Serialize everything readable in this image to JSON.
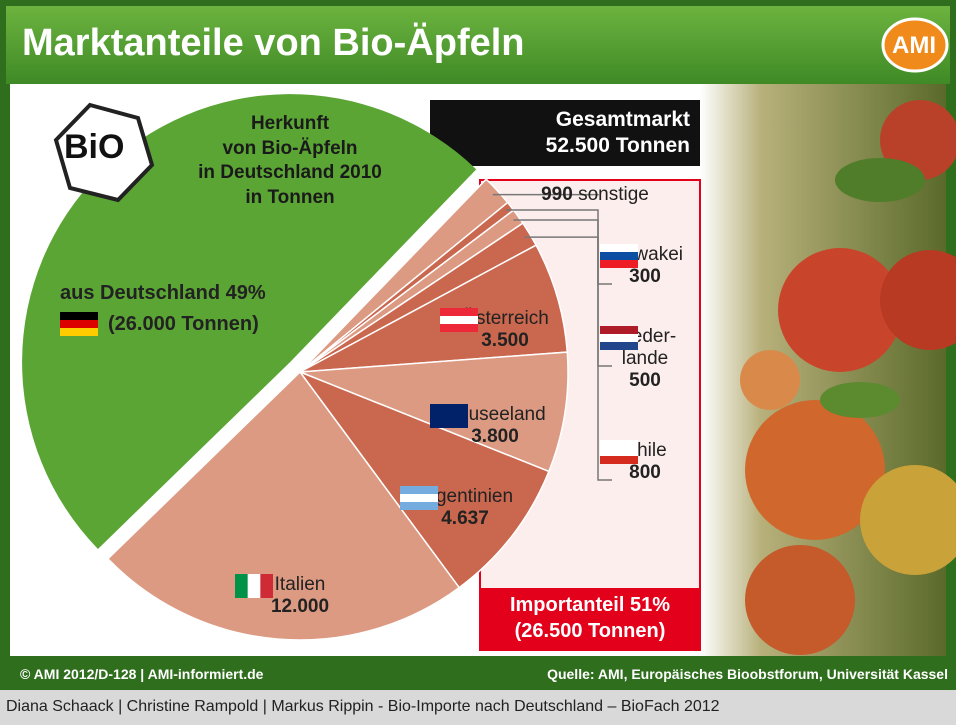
{
  "header": {
    "title": "Marktanteile von Bio-Äpfeln",
    "logo": "AMI",
    "bio_logo": "BiO"
  },
  "chart_data": {
    "type": "pie",
    "title": "Herkunft\nvon Bio-Äpfeln\nin Deutschland 2010\nin Tonnen",
    "categories": [
      "aus Deutschland 49%",
      "sonstige",
      "Slowakei",
      "Nieder-\nlande",
      "Chile",
      "Österreich",
      "Neuseeland",
      "Argentinien",
      "Italien"
    ],
    "values": [
      26000,
      990,
      300,
      500,
      800,
      3500,
      3800,
      4637,
      12000
    ],
    "value_labels": [
      "(26.000 Tonnen)",
      "990",
      "300",
      "500",
      "800",
      "3.500",
      "3.800",
      "4.637",
      "12.000"
    ],
    "colors": [
      "#5ba535",
      "#dc9a82",
      "#c9674f",
      "#dc9a82",
      "#c9674f",
      "#c9674f",
      "#dc9a82",
      "#c9674f",
      "#dc9a82"
    ]
  },
  "totals": {
    "market_label": "Gesamtmarkt",
    "market": "52.500 Tonnen",
    "import_label": "Importanteil 51%",
    "import": "(26.500 Tonnen)"
  },
  "footer": {
    "copyright": "© AMI 2012/D-128 | AMI-informiert.de",
    "source": "Quelle: AMI, Europäisches Bioobstforum, Universität Kassel"
  },
  "caption": "Diana Schaack | Christine Rampold | Markus Rippin - Bio-Importe nach Deutschland – BioFach 2012"
}
